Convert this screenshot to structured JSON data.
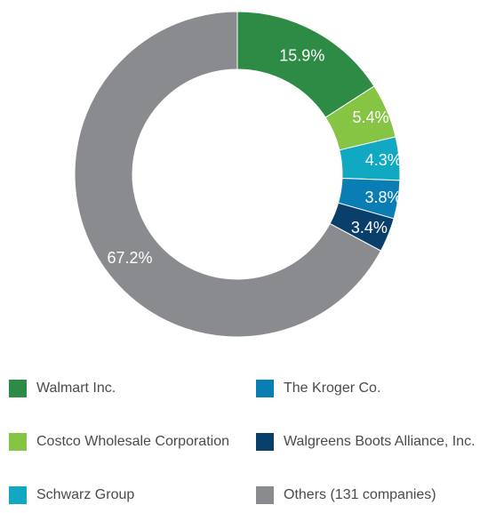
{
  "chart_data": {
    "type": "pie",
    "donut": true,
    "title": "",
    "categories": [
      "Walmart Inc.",
      "Costco Wholesale Corporation",
      "Schwarz Group",
      "The Kroger Co.",
      "Walgreens Boots Alliance, Inc.",
      "Others (131 companies)"
    ],
    "values": [
      15.9,
      5.4,
      4.3,
      3.8,
      3.4,
      67.2
    ],
    "data_labels": [
      "15.9%",
      "5.4%",
      "4.3%",
      "3.8%",
      "3.4%",
      "67.2%"
    ],
    "colors": [
      "#2e8b45",
      "#86c444",
      "#10a9c1",
      "#0a7db5",
      "#0b3f6b",
      "#898b8e"
    ],
    "legend_position": "bottom",
    "legend_columns": 2
  }
}
